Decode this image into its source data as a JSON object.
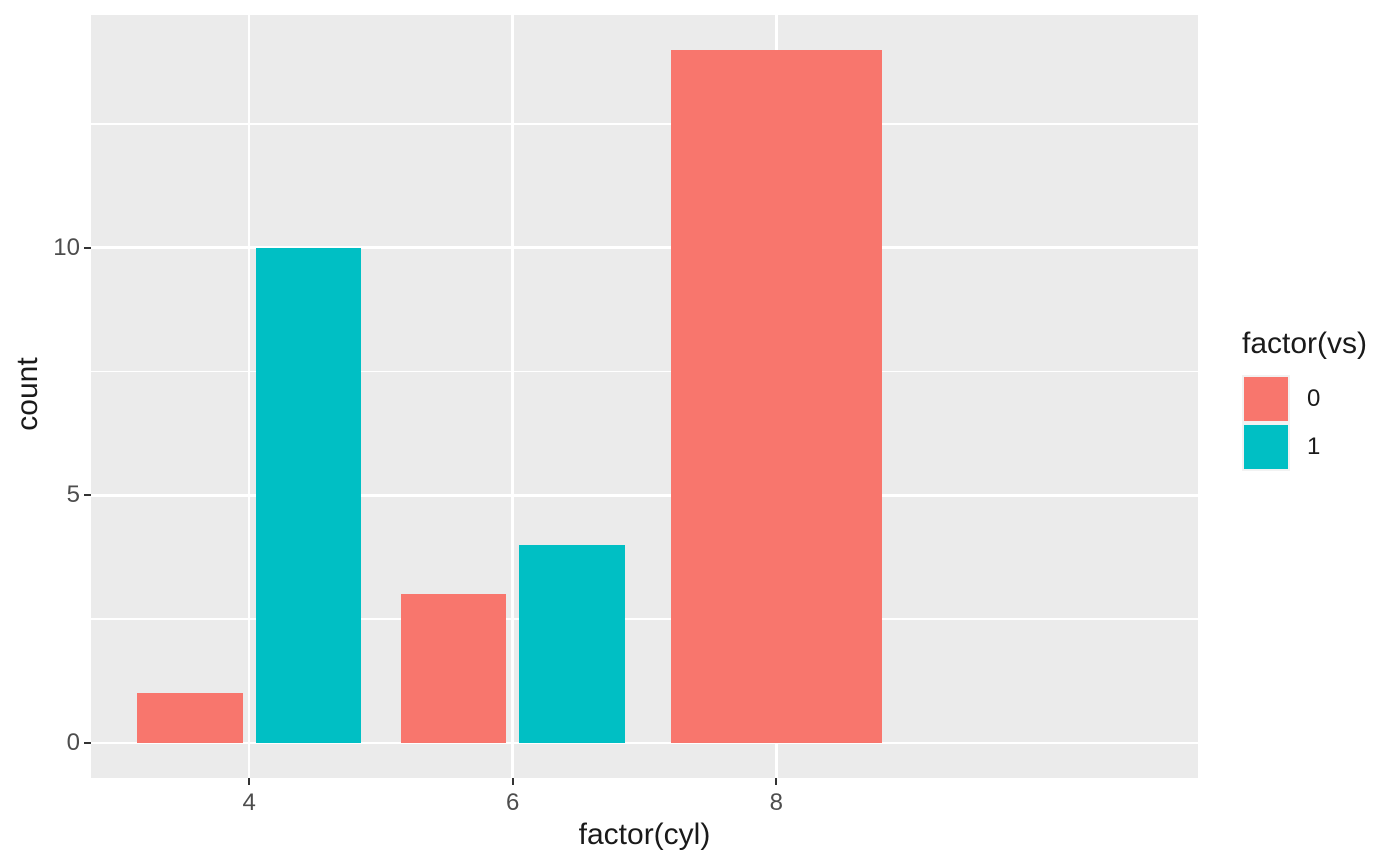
{
  "chart_data": {
    "type": "bar",
    "title": "",
    "xlabel": "factor(cyl)",
    "ylabel": "count",
    "legend_title": "factor(vs)",
    "legend_position": "right",
    "categories": [
      "4",
      "6",
      "8"
    ],
    "series": [
      {
        "name": "0",
        "color": "#F8766D",
        "values": [
          1,
          3,
          14
        ]
      },
      {
        "name": "1",
        "color": "#00BFC4",
        "values": [
          10,
          4,
          0
        ]
      }
    ],
    "y_ticks": [
      0,
      5,
      10
    ],
    "y_minor_ticks": [
      2.5,
      7.5,
      12.5
    ],
    "ylim": [
      -0.7,
      14.7
    ],
    "grid": true,
    "bar_width_units": 0.8,
    "dodge_offset_units": 0.225,
    "colors": {
      "panel_bg": "#EBEBEB",
      "grid": "#FFFFFF",
      "tick_text": "#4D4D4D",
      "title_text": "#1A1A1A",
      "tick_mark": "#333333",
      "legend_key_bg": "#F2F2F2",
      "background": "#FFFFFF"
    }
  }
}
